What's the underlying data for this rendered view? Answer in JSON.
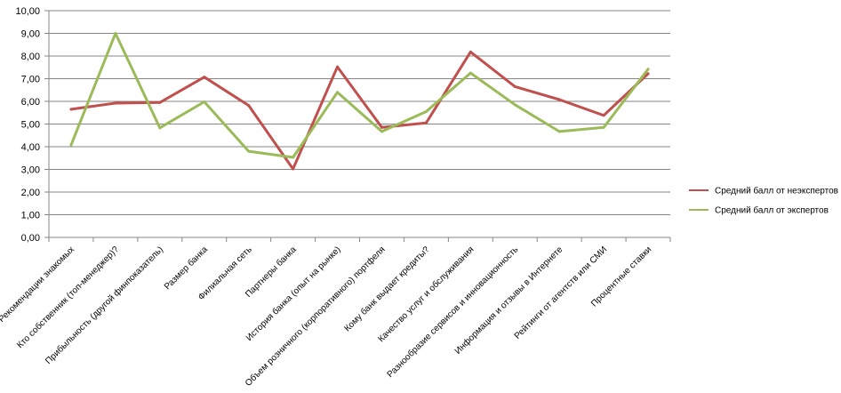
{
  "chart_data": {
    "type": "line",
    "title": "",
    "xlabel": "",
    "ylabel": "",
    "ylim": [
      0,
      10
    ],
    "y_ticks": [
      "0,00",
      "1,00",
      "2,00",
      "3,00",
      "4,00",
      "5,00",
      "6,00",
      "7,00",
      "8,00",
      "9,00",
      "10,00"
    ],
    "grid": true,
    "legend_position": "right",
    "categories": [
      "Рекомендации знакомых",
      "Кто собственник (топ-менеджер)?",
      "Прибыльность (другой финпоказатель)",
      "Размер банка",
      "Филиальная сеть",
      "Партнеры банка",
      "История банка (опыт на рынке)",
      "Объем розничного (корпоративного) портфеля",
      "Кому банк выдает кредиты?",
      "Качество услуг и обслуживания",
      "Разнообразие сервисов и инновационность",
      "Информация и отзывы в Интернете",
      "Рейтинги от агентств или СМИ",
      "Процентные ставки"
    ],
    "series": [
      {
        "name": "Средний балл от неэкспертов",
        "color": "#C0504D",
        "values": [
          5.65,
          5.92,
          5.95,
          7.07,
          5.82,
          3.02,
          7.52,
          4.85,
          5.05,
          8.18,
          6.65,
          6.08,
          5.38,
          7.22
        ]
      },
      {
        "name": "Средний балл от экспертов",
        "color": "#9BBB59",
        "values": [
          4.08,
          9.0,
          4.83,
          5.98,
          3.8,
          3.53,
          6.4,
          4.67,
          5.55,
          7.25,
          5.85,
          4.67,
          4.85,
          7.42
        ]
      }
    ]
  }
}
